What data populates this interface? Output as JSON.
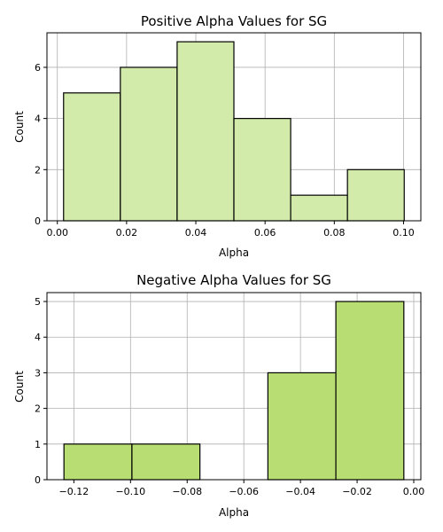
{
  "chart_data": [
    {
      "type": "bar",
      "title": "Positive Alpha Values for SG",
      "xlabel": "Alpha",
      "ylabel": "Count",
      "bin_edges": [
        0.0018,
        0.0182,
        0.0346,
        0.051,
        0.0674,
        0.0838,
        0.1002
      ],
      "values": [
        5,
        6,
        7,
        4,
        1,
        2
      ],
      "xlim": [
        -0.003,
        0.105
      ],
      "ylim": [
        0,
        7.35
      ],
      "xticks": [
        0.0,
        0.02,
        0.04,
        0.06,
        0.08,
        0.1
      ],
      "xtick_labels": [
        "0.00",
        "0.02",
        "0.04",
        "0.06",
        "0.08",
        "0.10"
      ],
      "yticks": [
        0,
        2,
        4,
        6
      ],
      "ytick_labels": [
        "0",
        "2",
        "4",
        "6"
      ],
      "grid": true,
      "bar_color": "#d3ebaa",
      "edge_color": "#000000"
    },
    {
      "type": "bar",
      "title": "Negative Alpha Values for SG",
      "xlabel": "Alpha",
      "ylabel": "Count",
      "bin_edges": [
        -0.1235,
        -0.0995,
        -0.0755,
        -0.0515,
        -0.0275,
        -0.0035
      ],
      "values": [
        1,
        1,
        0,
        3,
        5
      ],
      "xlim": [
        -0.1295,
        0.0025
      ],
      "ylim": [
        0,
        5.25
      ],
      "xticks": [
        -0.12,
        -0.1,
        -0.08,
        -0.06,
        -0.04,
        -0.02,
        0.0
      ],
      "xtick_labels": [
        "−0.12",
        "−0.10",
        "−0.08",
        "−0.06",
        "−0.04",
        "−0.02",
        "0.00"
      ],
      "yticks": [
        0,
        1,
        2,
        3,
        4,
        5
      ],
      "ytick_labels": [
        "0",
        "1",
        "2",
        "3",
        "4",
        "5"
      ],
      "grid": true,
      "bar_color": "#b8de73",
      "edge_color": "#000000"
    }
  ]
}
